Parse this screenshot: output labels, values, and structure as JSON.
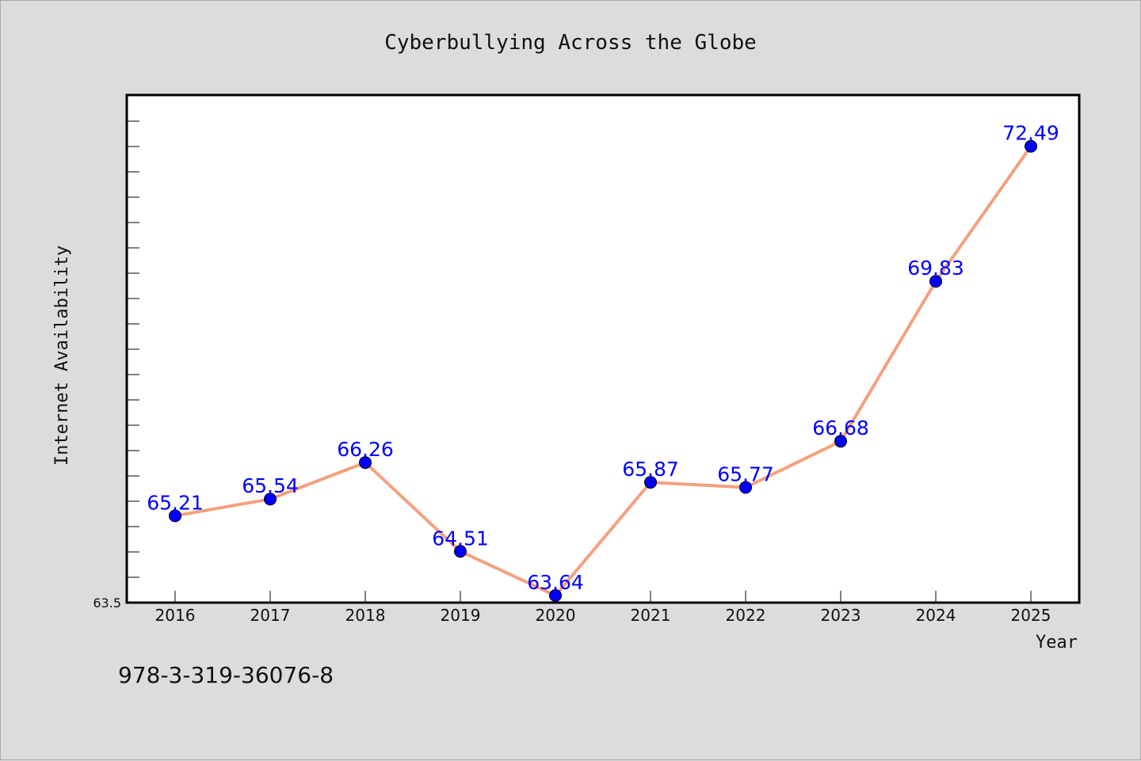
{
  "chart_data": {
    "type": "line",
    "title": "Cyberbullying Across the Globe",
    "xlabel": "Year",
    "ylabel": "Internet Availability",
    "categories": [
      "2016",
      "2017",
      "2018",
      "2019",
      "2020",
      "2021",
      "2022",
      "2023",
      "2024",
      "2025"
    ],
    "series": [
      {
        "values": [
          65.21,
          65.54,
          66.26,
          64.51,
          63.64,
          65.87,
          65.77,
          66.68,
          69.83,
          72.49
        ],
        "labels": [
          "65.21",
          "65.54",
          "66.26",
          "64.51",
          "63.64",
          "65.87",
          "65.77",
          "66.68",
          "69.83",
          "72.49"
        ],
        "line_color": "#f4a07f",
        "marker_color": "#0000ff",
        "label_color": "#0000ff"
      }
    ],
    "ylim": [
      63.5,
      73.5
    ],
    "ytick_label": "63.5",
    "grid": false,
    "legend": "none"
  },
  "footnote": "978-3-319-36076-8"
}
